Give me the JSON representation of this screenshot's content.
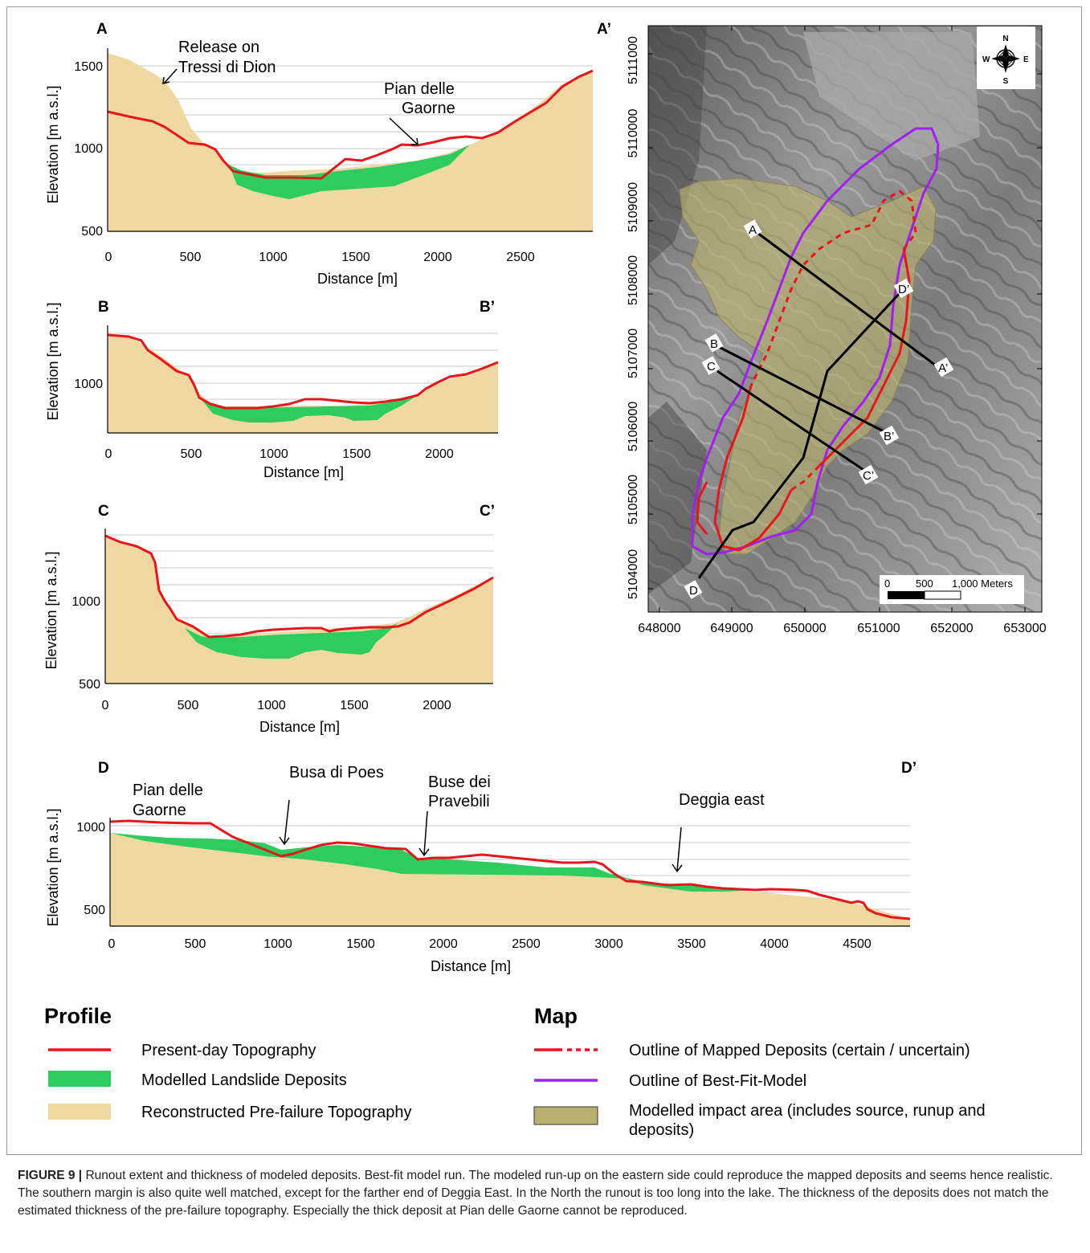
{
  "profiles": [
    {
      "id": "A",
      "label": "A",
      "end_label": "",
      "ylabel": "Elevation [m a.s.l.]",
      "xlabel": "Distance [m]",
      "xticks": [
        "0",
        "500",
        "1000",
        "1500",
        "2000",
        "2500"
      ],
      "yticks": [
        "500",
        "1000",
        "1500"
      ],
      "annotations": [
        "Release on",
        "Tressi di Dion",
        "Pian delle",
        "Gaorne"
      ]
    },
    {
      "id": "B",
      "label": "B",
      "end_label": "B’",
      "ylabel": "Elevation [m a.s.l.]",
      "xlabel": "Distance [m]",
      "xticks": [
        "0",
        "500",
        "1000",
        "1500",
        "2000"
      ],
      "yticks": [
        "1000"
      ],
      "annotations": []
    },
    {
      "id": "C",
      "label": "C",
      "end_label": "C’",
      "ylabel": "Elevation [m a.s.l.]",
      "xlabel": "Distance [m]",
      "xticks": [
        "0",
        "500",
        "1000",
        "1500",
        "2000"
      ],
      "yticks": [
        "500",
        "1000"
      ],
      "annotations": []
    },
    {
      "id": "D",
      "label": "D",
      "end_label": "D’",
      "ylabel": "Elevation [m a.s.l.]",
      "xlabel": "Distance [m]",
      "xticks": [
        "0",
        "500",
        "1000",
        "1500",
        "2000",
        "2500",
        "3000",
        "3500",
        "4000",
        "4500"
      ],
      "yticks": [
        "500",
        "1000"
      ],
      "annotations": [
        "Pian delle",
        "Gaorne",
        "Busa di Poes",
        "Buse dei",
        "Pravebili",
        "Deggia east"
      ]
    }
  ],
  "map": {
    "label": "A’",
    "xticks": [
      "648000",
      "649000",
      "650000",
      "651000",
      "652000",
      "653000"
    ],
    "yticks": [
      "5111000",
      "5110000",
      "5109000",
      "5108000",
      "5107000",
      "5106000",
      "5105000",
      "5104000"
    ],
    "section_labels": [
      "A",
      "A’",
      "B",
      "B’",
      "C",
      "C’",
      "D",
      "D’"
    ],
    "compass": [
      "N",
      "S",
      "W",
      "E"
    ],
    "scale": [
      "0",
      "500",
      "1,000 Meters"
    ]
  },
  "legend": {
    "profile_title": "Profile",
    "profile_items": [
      "Present-day Topography",
      "Modelled Landslide Deposits",
      "Reconstructed Pre-failure Topography"
    ],
    "map_title": "Map",
    "map_items": [
      "Outline of Mapped Deposits (certain / uncertain)",
      "Outline of Best-Fit-Model",
      "Modelled impact area (includes source, runup and",
      "deposits)"
    ]
  },
  "colors": {
    "present": "#e8151b",
    "deposit": "#2ecc5e",
    "prefailure": "#f0d8a2",
    "bestfit": "#a020f0",
    "impact": "#b8b070"
  },
  "caption": {
    "label": "FIGURE 9 |",
    "text": "Runout extent and thickness of modeled deposits. Best-fit model run. The modeled run-up on the eastern side could reproduce the mapped deposits and seems hence realistic. The southern margin is also quite well matched, except for the farther end of Deggia East. In the North the runout is too long into the lake. The thickness of the deposits does not match the estimated thickness of the pre-failure topography. Especially the thick deposit at Pian delle Gaorne cannot be reproduced."
  }
}
